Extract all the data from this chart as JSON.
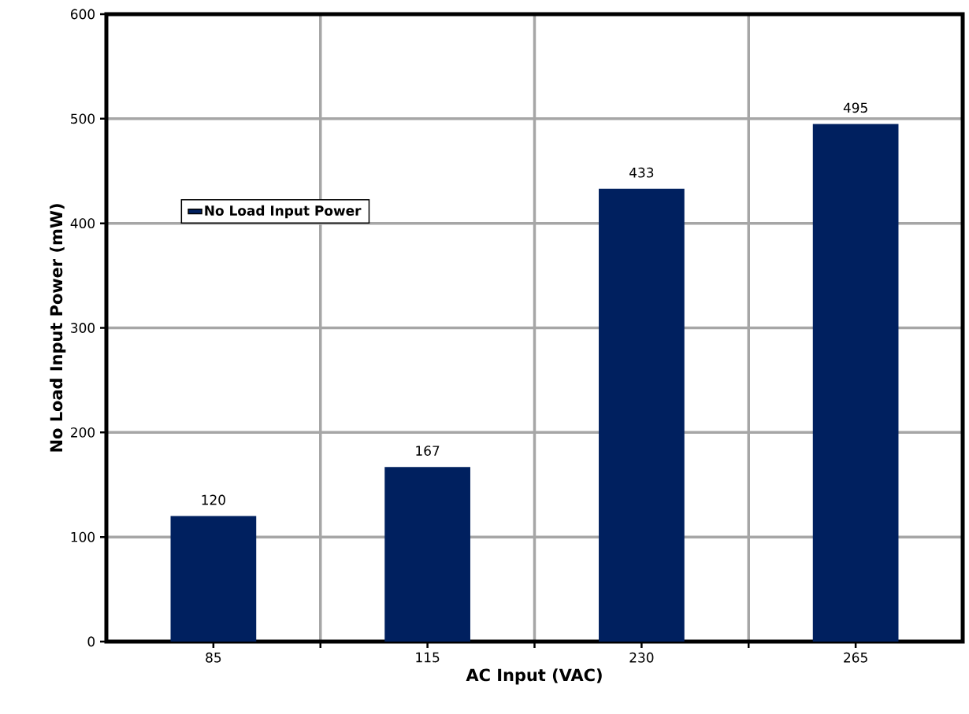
{
  "chart_data": {
    "type": "bar",
    "xlabel": "AC Input (VAC)",
    "ylabel": "No Load Input Power (mW)",
    "categories": [
      "85",
      "115",
      "230",
      "265"
    ],
    "series": [
      {
        "name": "No Load Input Power",
        "color": "#00205f",
        "values": [
          120,
          167,
          433,
          495
        ]
      }
    ],
    "ylim": [
      0,
      600
    ],
    "yticks": [
      0,
      100,
      200,
      300,
      400,
      500,
      600
    ],
    "grid": true,
    "legend": "top left",
    "data_labels": true
  }
}
